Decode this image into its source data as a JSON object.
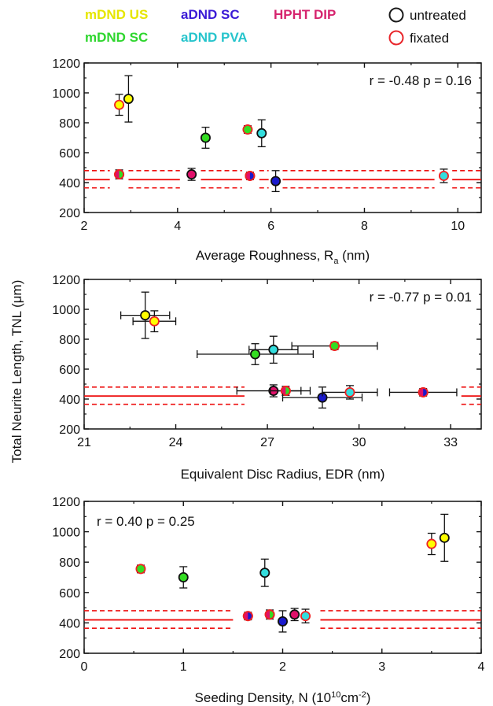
{
  "legend": {
    "items": [
      {
        "label": "mDND US",
        "color": "#e6e600"
      },
      {
        "label": "aDND SC",
        "color": "#3a1ad6"
      },
      {
        "label": "HPHT DIP",
        "color": "#d6246e"
      },
      {
        "label": "untreated",
        "color": "#1a1a1a"
      },
      {
        "label": "mDND SC",
        "color": "#2ed62e"
      },
      {
        "label": "aDND PVA",
        "color": "#26c4cc"
      },
      {
        "label": "fixated",
        "color": "#e8252a"
      }
    ]
  },
  "shared_ylabel_parts": [
    "Total Neurite Length, TNL (",
    "μ",
    "m)"
  ],
  "colors": {
    "mDND_US": "#ffff00",
    "mDND_SC": "#33dd22",
    "aDND_SC": "#1a1acc",
    "aDND_PVA": "#33dddd",
    "HPHT_DIP": "#e0106a",
    "untreated_edge": "#111111",
    "fixated_edge": "#ee2222",
    "reference_line": "#ee1111"
  },
  "chart_data": [
    {
      "type": "scatter",
      "annotation": "r = -0.48 p = 0.16",
      "xlabel_parts": [
        "Average Roughness, R",
        "a",
        " (nm)"
      ],
      "xlim": [
        2,
        10.5
      ],
      "ylim": [
        200,
        1200
      ],
      "xticks": [
        2,
        4,
        6,
        8,
        10
      ],
      "yticks": [
        200,
        400,
        600,
        800,
        1000,
        1200
      ],
      "reference_band": {
        "mean": 420,
        "upper": 480,
        "lower": 365
      },
      "points": [
        {
          "x": 2.75,
          "y": 455,
          "yerr": 30,
          "fill": "mDND_SC",
          "edge": "fixated_edge",
          "half": "HPHT_DIP"
        },
        {
          "x": 2.75,
          "y": 920,
          "yerr": 70,
          "fill": "mDND_US",
          "edge": "fixated_edge"
        },
        {
          "x": 2.95,
          "y": 960,
          "yerr": 155,
          "fill": "mDND_US",
          "edge": "untreated_edge"
        },
        {
          "x": 4.3,
          "y": 455,
          "yerr": 40,
          "fill": "HPHT_DIP",
          "edge": "untreated_edge"
        },
        {
          "x": 4.6,
          "y": 700,
          "yerr": 70,
          "fill": "mDND_SC",
          "edge": "untreated_edge"
        },
        {
          "x": 5.5,
          "y": 755,
          "yerr": 25,
          "fill": "mDND_SC",
          "edge": "fixated_edge"
        },
        {
          "x": 5.55,
          "y": 445,
          "yerr": 25,
          "fill": "aDND_SC",
          "edge": "fixated_edge",
          "half": "HPHT_DIP"
        },
        {
          "x": 5.8,
          "y": 730,
          "yerr": 90,
          "fill": "aDND_PVA",
          "edge": "untreated_edge"
        },
        {
          "x": 6.1,
          "y": 410,
          "yerr": 70,
          "fill": "aDND_SC",
          "edge": "untreated_edge"
        },
        {
          "x": 9.7,
          "y": 445,
          "yerr": 45,
          "fill": "aDND_PVA",
          "edge": "fixated_edge"
        }
      ]
    },
    {
      "type": "scatter",
      "annotation": "r = -0.77 p = 0.01",
      "xlabel_parts": [
        "Equivalent Disc Radius, EDR (nm)",
        "",
        ""
      ],
      "xlim": [
        21,
        34
      ],
      "ylim": [
        200,
        1200
      ],
      "xticks": [
        21,
        24,
        27,
        30,
        33
      ],
      "yticks": [
        200,
        400,
        600,
        800,
        1000,
        1200
      ],
      "reference_band": {
        "mean": 420,
        "upper": 480,
        "lower": 365
      },
      "points": [
        {
          "x": 23.0,
          "y": 960,
          "xerr": 0.8,
          "yerr": 155,
          "fill": "mDND_US",
          "edge": "untreated_edge"
        },
        {
          "x": 23.3,
          "y": 920,
          "xerr": 0.7,
          "yerr": 70,
          "fill": "mDND_US",
          "edge": "fixated_edge"
        },
        {
          "x": 26.6,
          "y": 700,
          "xerr": 1.9,
          "yerr": 70,
          "fill": "mDND_SC",
          "edge": "untreated_edge"
        },
        {
          "x": 27.2,
          "y": 455,
          "xerr": 1.2,
          "yerr": 40,
          "fill": "HPHT_DIP",
          "edge": "untreated_edge"
        },
        {
          "x": 27.2,
          "y": 730,
          "xerr": 0.8,
          "yerr": 90,
          "fill": "aDND_PVA",
          "edge": "untreated_edge"
        },
        {
          "x": 27.6,
          "y": 455,
          "xerr": 0.5,
          "yerr": 30,
          "fill": "mDND_SC",
          "edge": "fixated_edge",
          "half": "HPHT_DIP"
        },
        {
          "x": 28.8,
          "y": 410,
          "xerr": 1.3,
          "yerr": 70,
          "fill": "aDND_SC",
          "edge": "untreated_edge"
        },
        {
          "x": 29.2,
          "y": 755,
          "xerr": 1.4,
          "yerr": 25,
          "fill": "mDND_SC",
          "edge": "fixated_edge"
        },
        {
          "x": 29.7,
          "y": 445,
          "xerr": 0.9,
          "yerr": 45,
          "fill": "aDND_PVA",
          "edge": "fixated_edge"
        },
        {
          "x": 32.1,
          "y": 445,
          "xerr": 1.1,
          "yerr": 25,
          "fill": "aDND_SC",
          "edge": "fixated_edge",
          "half": "HPHT_DIP"
        }
      ]
    },
    {
      "type": "scatter",
      "annotation": "r = 0.40 p = 0.25",
      "xlabel_parts": [
        "Seeding Density, N (10",
        "10",
        "cm",
        "-2",
        ")"
      ],
      "xlim": [
        0,
        4
      ],
      "ylim": [
        200,
        1200
      ],
      "xticks": [
        0,
        1,
        2,
        3,
        4
      ],
      "yticks": [
        200,
        400,
        600,
        800,
        1000,
        1200
      ],
      "reference_band": {
        "mean": 420,
        "upper": 480,
        "lower": 365
      },
      "points": [
        {
          "x": 0.57,
          "y": 755,
          "yerr": 25,
          "fill": "mDND_SC",
          "edge": "fixated_edge"
        },
        {
          "x": 1.0,
          "y": 700,
          "yerr": 70,
          "fill": "mDND_SC",
          "edge": "untreated_edge"
        },
        {
          "x": 1.65,
          "y": 445,
          "yerr": 25,
          "fill": "aDND_SC",
          "edge": "fixated_edge",
          "half": "HPHT_DIP"
        },
        {
          "x": 1.82,
          "y": 730,
          "yerr": 90,
          "fill": "aDND_PVA",
          "edge": "untreated_edge"
        },
        {
          "x": 1.87,
          "y": 455,
          "yerr": 30,
          "fill": "mDND_SC",
          "edge": "fixated_edge",
          "half": "HPHT_DIP"
        },
        {
          "x": 2.0,
          "y": 410,
          "yerr": 70,
          "fill": "aDND_SC",
          "edge": "untreated_edge"
        },
        {
          "x": 2.12,
          "y": 455,
          "yerr": 40,
          "fill": "HPHT_DIP",
          "edge": "untreated_edge"
        },
        {
          "x": 2.23,
          "y": 445,
          "yerr": 45,
          "fill": "aDND_PVA",
          "edge": "fixated_edge"
        },
        {
          "x": 3.5,
          "y": 920,
          "yerr": 70,
          "fill": "mDND_US",
          "edge": "fixated_edge"
        },
        {
          "x": 3.63,
          "y": 960,
          "yerr": 155,
          "fill": "mDND_US",
          "edge": "untreated_edge"
        }
      ]
    }
  ]
}
